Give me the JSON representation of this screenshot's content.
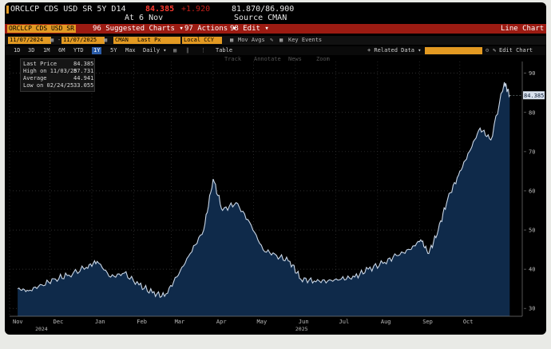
{
  "header": {
    "ticker": "ORCLCP CDS USD SR 5Y D14",
    "last": "84.385",
    "change": "+1.920",
    "range": "81.870/86.900",
    "asof": "At 6 Nov",
    "source": "Source CMAN"
  },
  "red_bar": {
    "security": "ORCLCP CDS USD SR",
    "suggested": "96 Suggested Charts ▾",
    "actions": "97 Actions ▾",
    "edit": "98 Edit ▾",
    "title": "Line Chart"
  },
  "date_row": {
    "start": "11/07/2024",
    "end": "11/07/2025",
    "source_field": "CMAN",
    "price_field": "Last Px",
    "ccy_field": "Local CCY",
    "mov_avgs": "Mov Avgs",
    "key_events": "Key Events"
  },
  "menu_row": {
    "periods": [
      "1D",
      "3D",
      "1M",
      "6M",
      "YTD",
      "1Y",
      "5Y",
      "Max"
    ],
    "active_period": "1Y",
    "daily": "Daily ▾",
    "table": "Table",
    "related": "+ Related Data ▾",
    "edit_chart": "Edit Chart"
  },
  "tools": [
    "Track",
    "Annotate",
    "News",
    "Zoom"
  ],
  "legend": {
    "rows": [
      {
        "label": "Last Price",
        "value": "84.385"
      },
      {
        "label": "High on 11/03/25",
        "value": "87.731"
      },
      {
        "label": "Average",
        "value": "44.941"
      },
      {
        "label": "Low on 02/24/25",
        "value": "33.055"
      }
    ]
  },
  "colors": {
    "accent_orange": "#e39a22",
    "red_bar": "#9c1b12",
    "area_fill": "#0f2a4a",
    "line": "#c9d6e6",
    "background": "#000000"
  },
  "chart_data": {
    "type": "area",
    "x": [
      "2024-11-07",
      "2024-11-15",
      "2024-11-25",
      "2024-12-05",
      "2024-12-15",
      "2024-12-28",
      "2025-01-05",
      "2025-01-15",
      "2025-01-25",
      "2025-02-05",
      "2025-02-15",
      "2025-02-24",
      "2025-03-05",
      "2025-03-15",
      "2025-03-25",
      "2025-04-01",
      "2025-04-08",
      "2025-04-18",
      "2025-04-28",
      "2025-05-08",
      "2025-05-18",
      "2025-05-28",
      "2025-06-05",
      "2025-06-15",
      "2025-06-25",
      "2025-07-05",
      "2025-07-15",
      "2025-07-25",
      "2025-08-05",
      "2025-08-15",
      "2025-08-25",
      "2025-09-02",
      "2025-09-08",
      "2025-09-15",
      "2025-09-22",
      "2025-09-30",
      "2025-10-08",
      "2025-10-16",
      "2025-10-24",
      "2025-11-03",
      "2025-11-07"
    ],
    "values": [
      35,
      34.5,
      36,
      37.5,
      38.5,
      40.5,
      42,
      38,
      39,
      36,
      34,
      33.1,
      38,
      44,
      50,
      63,
      55,
      57,
      52,
      45,
      43.5,
      42,
      37.5,
      37,
      37,
      37.5,
      38,
      40,
      41.5,
      43.5,
      45,
      47.5,
      44,
      50,
      58,
      64,
      70,
      76,
      73,
      87.7,
      84.385
    ],
    "xticks": [
      "Nov",
      "Dec",
      "Jan",
      "Feb",
      "Mar",
      "Apr",
      "May",
      "Jun",
      "Jul",
      "Aug",
      "Sep",
      "Oct"
    ],
    "years": [
      "2024",
      "2025"
    ],
    "yticks": [
      30,
      40,
      50,
      60,
      70,
      80,
      90
    ],
    "ylim": [
      28,
      93
    ],
    "last_label": "84.385",
    "grid": true
  }
}
